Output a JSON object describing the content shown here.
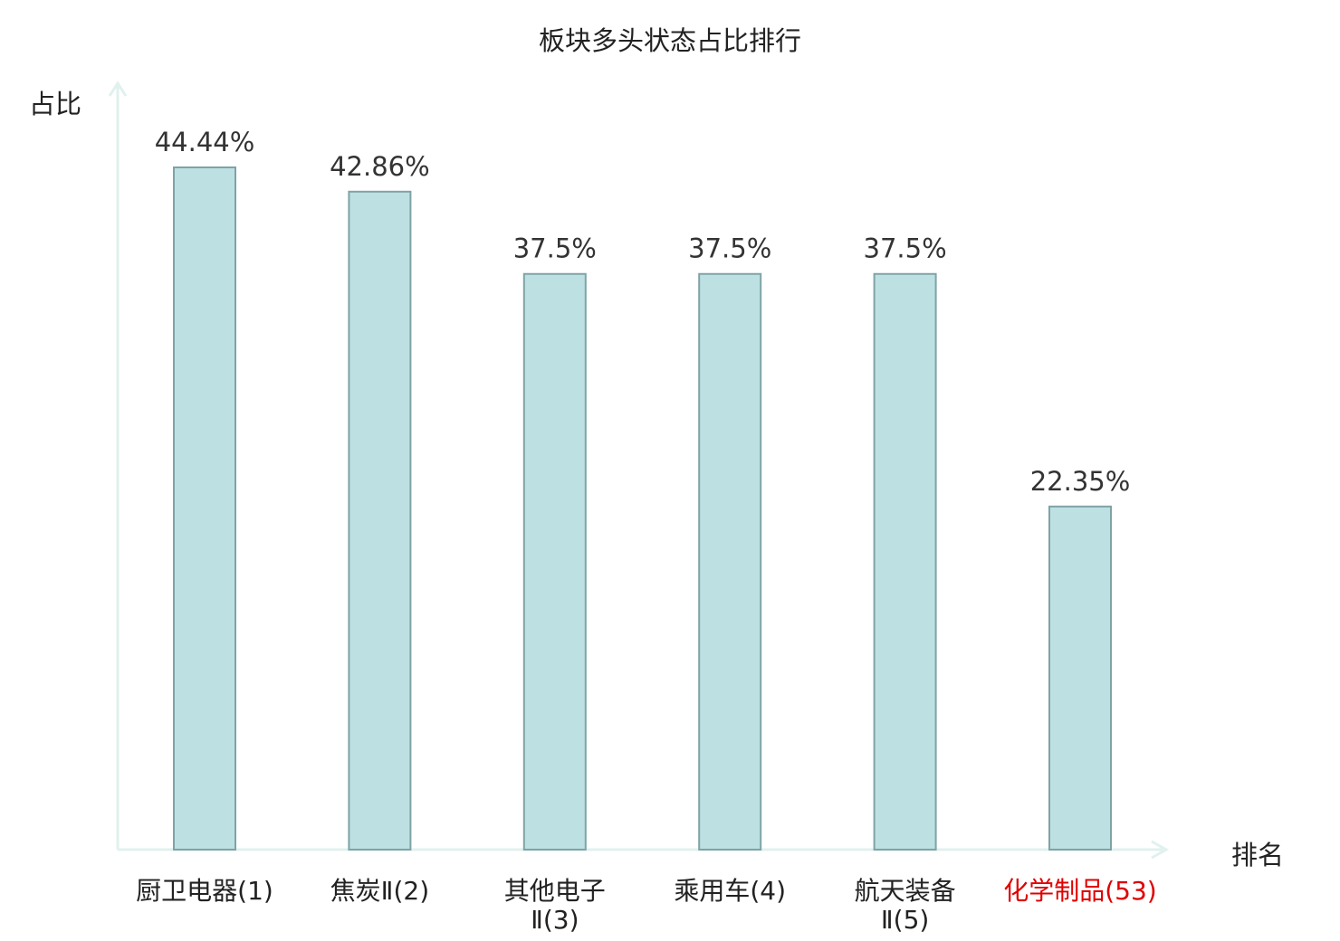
{
  "chart_data": {
    "type": "bar",
    "title": "板块多头状态占比排行",
    "ylabel": "占比",
    "xlabel": "排名",
    "categories": [
      [
        "厨卫电器(1)"
      ],
      [
        "焦炭Ⅱ(2)"
      ],
      [
        "其他电子",
        "Ⅱ(3)"
      ],
      [
        "乘用车(4)"
      ],
      [
        "航天装备",
        "Ⅱ(5)"
      ],
      [
        "化学制品(53)"
      ]
    ],
    "values": [
      44.44,
      42.86,
      37.5,
      37.5,
      37.5,
      22.35
    ],
    "value_labels": [
      "44.44%",
      "42.86%",
      "37.5%",
      "37.5%",
      "37.5%",
      "22.35%"
    ],
    "highlight_index": 5,
    "ylim": [
      0,
      44.44
    ],
    "grid": false,
    "colors": {
      "bar_fill": "#bde0e3",
      "bar_stroke": "#7fa3a6",
      "axis": "#e0f1ef",
      "tick_label": "#222222",
      "highlight_label": "#e00000"
    }
  }
}
